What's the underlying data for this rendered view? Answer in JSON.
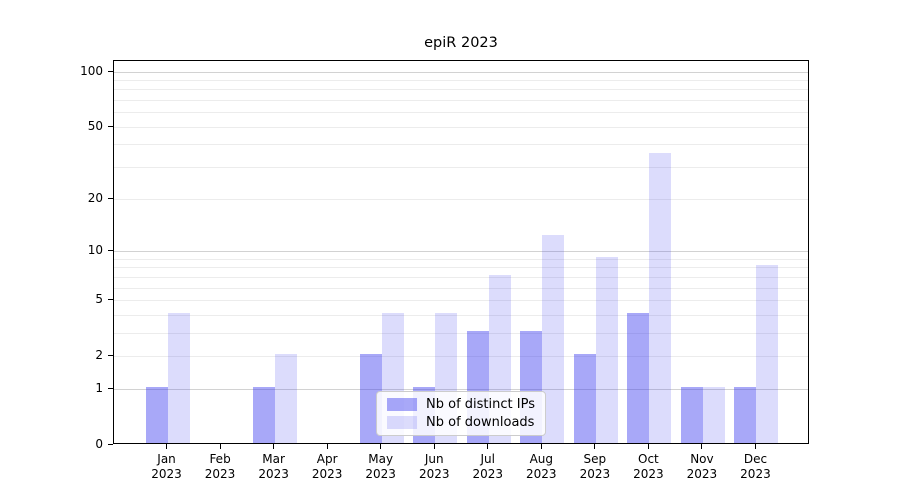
{
  "title": "epiR 2023",
  "chart_data": {
    "type": "bar",
    "title": "epiR 2023",
    "categories": [
      "Jan 2023",
      "Feb 2023",
      "Mar 2023",
      "Apr 2023",
      "May 2023",
      "Jun 2023",
      "Jul 2023",
      "Aug 2023",
      "Sep 2023",
      "Oct 2023",
      "Nov 2023",
      "Dec 2023"
    ],
    "series": [
      {
        "name": "Nb of distinct IPs",
        "color": "rgba(62,62,240,0.45)",
        "values": [
          1,
          0,
          1,
          0,
          2,
          1,
          3,
          3,
          2,
          4,
          1,
          1
        ]
      },
      {
        "name": "Nb of downloads",
        "color": "rgba(62,62,240,0.18)",
        "values": [
          4,
          0,
          2,
          0,
          4,
          4,
          7,
          12,
          9,
          35,
          1,
          8
        ]
      }
    ],
    "xlabel": "",
    "ylabel": "",
    "y_scale": "log1p",
    "ylim": [
      0,
      114
    ],
    "y_ticks": [
      0,
      1,
      2,
      5,
      10,
      20,
      50,
      100
    ],
    "y_major_grid": [
      1,
      10,
      100
    ],
    "y_minor_grid": [
      2,
      3,
      4,
      5,
      6,
      7,
      8,
      9,
      20,
      30,
      40,
      50,
      60,
      70,
      80,
      90
    ],
    "grid": "horizontal",
    "legend_position": "lower center",
    "colors": {
      "major_grid": "#d2d2d2",
      "minor_grid": "#ececec",
      "axis": "#000000",
      "legend_border": "#cccccc",
      "bar_dark_rendered": "#a8a8f8",
      "bar_light_rendered": "#dcdcfc"
    }
  }
}
